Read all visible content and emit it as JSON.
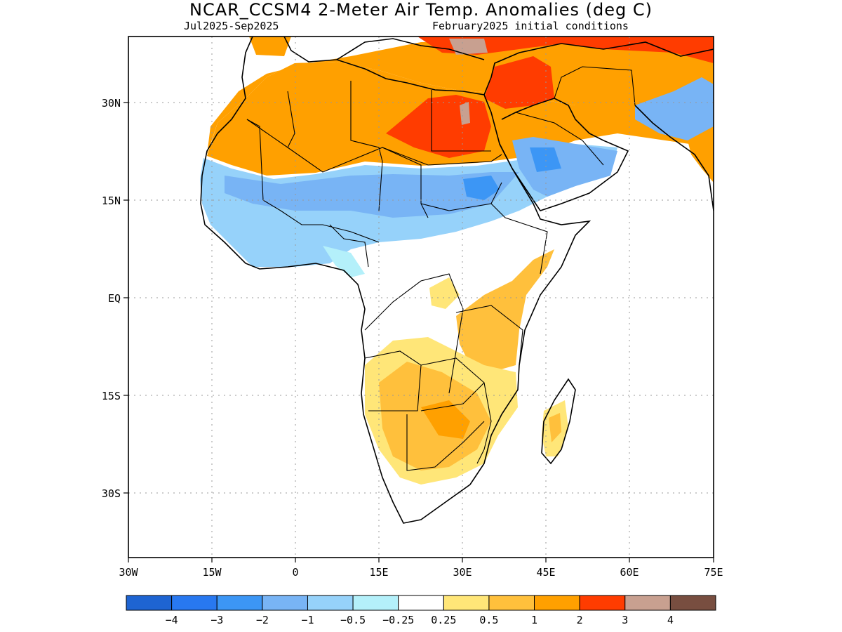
{
  "title": "NCAR_CCSM4 2-Meter Air Temp. Anomalies (deg C)",
  "subtitle_left": "Jul2025-Sep2025",
  "subtitle_right": "February2025 initial conditions",
  "axes": {
    "x_ticks": [
      "30W",
      "15W",
      "0",
      "15E",
      "30E",
      "45E",
      "60E",
      "75E"
    ],
    "y_ticks": [
      "30N",
      "15N",
      "EQ",
      "15S",
      "30S"
    ]
  },
  "colorbar": {
    "colors": [
      "#1e64d2",
      "#2878f0",
      "#3c96f5",
      "#78b4f5",
      "#96d2fa",
      "#b4f0fa",
      "#ffffff",
      "#ffe678",
      "#ffc03c",
      "#ffa000",
      "#ff3c00",
      "#c8a090",
      "#784e40"
    ],
    "labels": [
      "−4",
      "−3",
      "−2",
      "−1",
      "−0.5",
      "−0.25",
      "0.25",
      "0.5",
      "1",
      "2",
      "3",
      "4"
    ]
  },
  "map_data": {
    "region": "Africa",
    "lon_range": [
      -30,
      75
    ],
    "lat_range": [
      -40,
      40
    ],
    "anomaly_regions": [
      {
        "area": "Sahara",
        "category": "1 to 2"
      },
      {
        "area": "Egypt / Libya",
        "category": "2 to 3"
      },
      {
        "area": "Middle East",
        "category": "2 to 3"
      },
      {
        "area": "Sahel",
        "category": "-1 to -0.5"
      },
      {
        "area": "Arabian Peninsula south",
        "category": "-2 to -1"
      },
      {
        "area": "Southern Africa",
        "category": "0.5 to 2"
      },
      {
        "area": "East Africa coast",
        "category": "0.5 to 1"
      }
    ]
  }
}
